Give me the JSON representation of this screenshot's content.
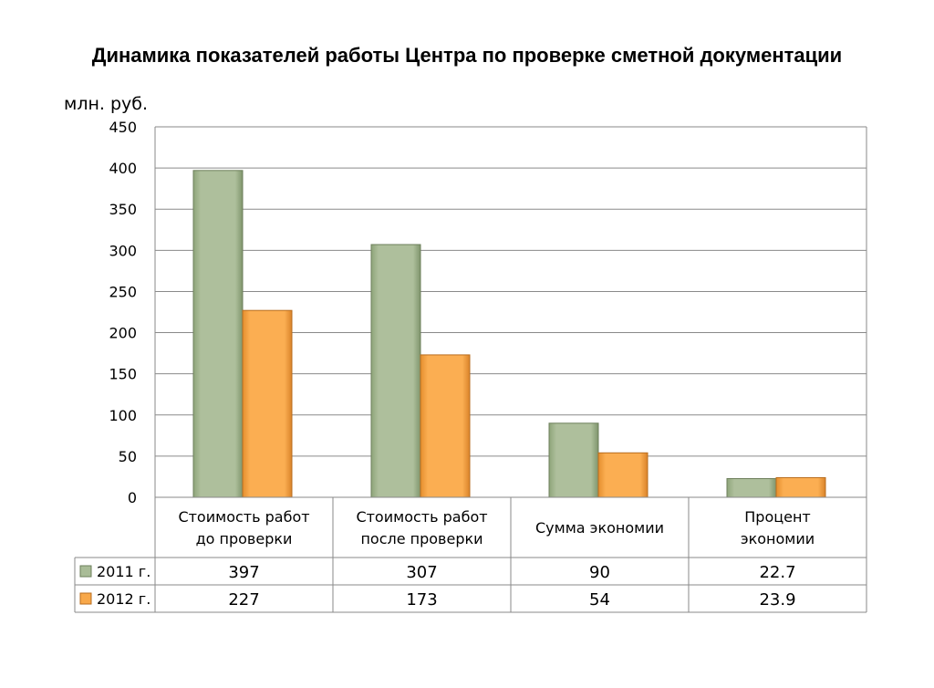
{
  "title": "Динамика показателей работы Центра по проверке сметной документации",
  "colors": {
    "series_2011": "#a9bc97",
    "series_2012": "#f8a84a",
    "grid": "#8a8a8a"
  },
  "chart_data": {
    "type": "bar",
    "title": "Динамика показателей работы Центра по проверке сметной документации",
    "ylabel": "млн. руб.",
    "ylim": [
      0,
      450
    ],
    "yticks": [
      "0",
      "50",
      "100",
      "150",
      "200",
      "250",
      "300",
      "350",
      "400",
      "450"
    ],
    "grid": true,
    "legend": "data-table",
    "categories": [
      [
        "Стоимость работ",
        "до проверки"
      ],
      [
        "Стоимость работ",
        "после проверки"
      ],
      [
        "Сумма экономии"
      ],
      [
        "Процент",
        "экономии"
      ]
    ],
    "series": [
      {
        "name": "2011 г.",
        "values": [
          397,
          307,
          90,
          22.7
        ],
        "labels": [
          "397",
          "307",
          "90",
          "22.7"
        ]
      },
      {
        "name": "2012 г.",
        "values": [
          227,
          173,
          54,
          23.9
        ],
        "labels": [
          "227",
          "173",
          "54",
          "23.9"
        ]
      }
    ]
  }
}
